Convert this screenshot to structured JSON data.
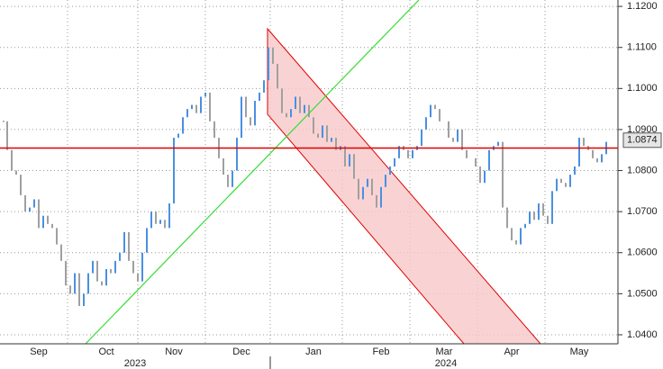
{
  "chart_data": {
    "type": "ohlc",
    "categories": [
      null,
      null,
      null,
      null,
      null,
      null,
      null,
      null,
      "Sep",
      null,
      null,
      null,
      null,
      null,
      null,
      null,
      null,
      null,
      null,
      null,
      null,
      null,
      null,
      "Oct",
      null,
      null,
      null,
      null,
      null,
      null,
      null,
      null,
      null,
      null,
      null,
      null,
      null,
      null,
      "Nov",
      null,
      null,
      null,
      null,
      null,
      null,
      null,
      null,
      null,
      null,
      null,
      null,
      null,
      null,
      "Dec",
      null,
      null,
      null,
      null,
      null,
      null,
      null,
      null,
      null,
      null,
      null,
      null,
      null,
      null,
      null,
      "Jan",
      null,
      null,
      null,
      null,
      null,
      null,
      null,
      null,
      null,
      null,
      null,
      null,
      null,
      null,
      "Feb",
      null,
      null,
      null,
      null,
      null,
      null,
      null,
      null,
      null,
      null,
      null,
      null,
      null,
      "Mar",
      null,
      null,
      null,
      null,
      null,
      null,
      null,
      null,
      null,
      null,
      null,
      null,
      null,
      null,
      "Apr",
      null,
      null,
      null,
      null,
      null,
      null,
      null,
      null,
      null,
      null,
      null,
      null,
      null,
      null,
      "May",
      null,
      null,
      null,
      null,
      null,
      null
    ],
    "values": [
      1.092,
      1.085,
      1.08,
      1.079,
      1.074,
      1.07,
      1.071,
      1.073,
      1.066,
      1.069,
      1.067,
      1.066,
      1.062,
      1.058,
      1.052,
      1.05,
      1.055,
      1.047,
      1.05,
      1.055,
      1.058,
      1.053,
      1.052,
      1.056,
      1.055,
      1.058,
      1.06,
      1.065,
      1.058,
      1.055,
      1.053,
      1.06,
      1.066,
      1.07,
      1.067,
      1.068,
      1.066,
      1.072,
      1.088,
      1.089,
      1.093,
      1.095,
      1.096,
      1.094,
      1.098,
      1.099,
      1.092,
      1.088,
      1.083,
      1.079,
      1.076,
      1.08,
      1.088,
      1.098,
      1.093,
      1.091,
      1.097,
      1.099,
      1.102,
      1.11,
      1.106,
      1.1,
      1.094,
      1.093,
      1.095,
      1.098,
      1.094,
      1.096,
      1.093,
      1.089,
      1.088,
      1.091,
      1.087,
      1.088,
      1.085,
      1.086,
      1.081,
      1.084,
      1.078,
      1.073,
      1.076,
      1.078,
      1.074,
      1.071,
      1.076,
      1.079,
      1.081,
      1.083,
      1.086,
      1.085,
      1.083,
      1.085,
      1.086,
      1.09,
      1.093,
      1.096,
      1.095,
      1.092,
      1.092,
      1.088,
      1.087,
      1.09,
      1.085,
      1.083,
      1.083,
      1.081,
      1.077,
      1.08,
      1.085,
      1.086,
      1.087,
      1.071,
      1.066,
      1.063,
      1.062,
      1.066,
      1.067,
      1.07,
      1.068,
      1.072,
      1.069,
      1.067,
      1.075,
      1.078,
      1.077,
      1.076,
      1.079,
      1.081,
      1.088,
      1.086,
      1.085,
      1.083,
      1.082,
      1.084,
      1.087
    ],
    "up_color": "#4a90e2",
    "down_color": "#a0a0a0",
    "year_labels": [
      "2023",
      "2024"
    ],
    "ylim": [
      1.0378,
      1.1218
    ],
    "yticks": [
      {
        "value": 1.04,
        "label": "1.0400"
      },
      {
        "value": 1.05,
        "label": "1.0500"
      },
      {
        "value": 1.06,
        "label": "1.0600"
      },
      {
        "value": 1.07,
        "label": "1.0700"
      },
      {
        "value": 1.08,
        "label": "1.0800"
      },
      {
        "value": 1.09,
        "label": "1.0900"
      },
      {
        "value": 1.1,
        "label": "1.1000"
      },
      {
        "value": 1.11,
        "label": "1.1100"
      },
      {
        "value": 1.12,
        "label": "1.1200"
      }
    ],
    "hline": {
      "value": 1.0855,
      "color": "#e00000"
    },
    "last_price": {
      "value": 1.0874,
      "label": "1.0874"
    },
    "grid": true
  }
}
